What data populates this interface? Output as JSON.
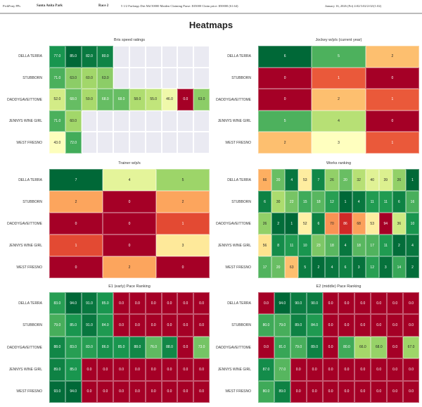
{
  "header": {
    "app": "PickPony PPs",
    "track": "Santa Anita Park",
    "race": "Race 2",
    "conditions": "5 1/2 Furlongs Dirt Md 50000 Maiden Claiming Purse: $35000 Claim price: $50000 (61.64)",
    "date": "January 16, 2026 (Fri) 4:02/3:02/2:02/(1:02)"
  },
  "page_title": "Heatmaps",
  "chart_data": [
    {
      "type": "heatmap",
      "title": "Bris speed ratings",
      "rows": [
        "DELLA TERRA",
        "STUBBORN",
        "DADDYGAVEITTOME",
        "JENNYS WINE GIRL",
        "WEST FRESNO"
      ],
      "colormap": "RdYlGn",
      "range": [
        0,
        85
      ],
      "values": [
        [
          77.0,
          85.0,
          82.0,
          80.0
        ],
        [
          71.0,
          63.0,
          60.0,
          63.0
        ],
        [
          52.0,
          68.0,
          59.0,
          68.0,
          68.0,
          58.0,
          55.0,
          46.0,
          0.0,
          63.0
        ],
        [
          71.0,
          60.0
        ],
        [
          43.0,
          72.0
        ]
      ],
      "columns": 10,
      "format": "float"
    },
    {
      "type": "heatmap",
      "title": "Jockey w/p/s (current year)",
      "rows": [
        "DELLA TERRA",
        "STUBBORN",
        "DADDYGAVEITTOME",
        "JENNYS WINE GIRL",
        "WEST FRESNO"
      ],
      "colormap": "RdYlGn",
      "range": [
        0,
        6
      ],
      "values": [
        [
          6,
          5,
          2
        ],
        [
          0,
          1,
          0
        ],
        [
          0,
          2,
          1
        ],
        [
          5,
          4,
          0
        ],
        [
          2,
          3,
          1
        ]
      ],
      "columns": 3,
      "format": "int"
    },
    {
      "type": "heatmap",
      "title": "Trainer w/p/s",
      "rows": [
        "DELLA TERRA",
        "STUBBORN",
        "DADDYGAVEITTOME",
        "JENNYS WINE GIRL",
        "WEST FRESNO"
      ],
      "colormap": "RdYlGn",
      "range": [
        0,
        7
      ],
      "values": [
        [
          7,
          4,
          5
        ],
        [
          2,
          0,
          2
        ],
        [
          0,
          0,
          1
        ],
        [
          1,
          0,
          3
        ],
        [
          0,
          2,
          0
        ]
      ],
      "columns": 3,
      "format": "int"
    },
    {
      "type": "heatmap",
      "title": "Works ranking",
      "rows": [
        "DELLA TERRA",
        "STUBBORN",
        "DADDYGAVEITTOME",
        "JENNYS WINE GIRL",
        "WEST FRESNO"
      ],
      "colormap": "RdYlGn_r",
      "range": [
        1,
        94
      ],
      "values": [
        [
          66,
          20,
          4,
          53,
          7,
          26,
          20,
          32,
          40,
          39,
          26,
          1
        ],
        [
          6,
          30,
          22,
          15,
          18,
          12,
          1,
          4,
          11,
          11,
          6,
          16
        ],
        [
          26,
          2,
          1,
          52,
          6,
          70,
          86,
          68,
          53,
          94,
          36,
          10
        ],
        [
          56,
          8,
          11,
          10,
          23,
          18,
          4,
          18,
          17,
          11,
          2,
          4
        ],
        [
          17,
          20,
          63,
          5,
          2,
          4,
          6,
          3,
          12,
          3,
          14,
          2
        ]
      ],
      "columns": 12,
      "format": "int"
    },
    {
      "type": "heatmap",
      "title": "E1 (early) Pace Ranking",
      "rows": [
        "DELLA TERRA",
        "STUBBORN",
        "DADDYGAVEITTOME",
        "JENNYS WINE GIRL",
        "WEST FRESNO"
      ],
      "colormap": "RdYlGn",
      "range": [
        0,
        94
      ],
      "values": [
        [
          83,
          94,
          91,
          85,
          0,
          0,
          0,
          0,
          0,
          0
        ],
        [
          79,
          85,
          91,
          84,
          0,
          0,
          0,
          0,
          0,
          0
        ],
        [
          88,
          83,
          83,
          86,
          85,
          88,
          76,
          88,
          0,
          73
        ],
        [
          89,
          85,
          0,
          0,
          0,
          0,
          0,
          0,
          0,
          0
        ],
        [
          93,
          94,
          0,
          0,
          0,
          0,
          0,
          0,
          0,
          0
        ]
      ],
      "columns": 10,
      "format": "float"
    },
    {
      "type": "heatmap",
      "title": "E2 (middle) Pace Ranking",
      "rows": [
        "DELLA TERRA",
        "STUBBORN",
        "DADDYGAVEITTOME",
        "JENNYS WINE GIRL",
        "WEST FRESNO"
      ],
      "colormap": "RdYlGn",
      "range": [
        0,
        94
      ],
      "values": [
        [
          0,
          94,
          90,
          90,
          0,
          0,
          0,
          0,
          0,
          0
        ],
        [
          80,
          79,
          89,
          84,
          0,
          0,
          0,
          0,
          0,
          0
        ],
        [
          0,
          81,
          79,
          89,
          0,
          80,
          66,
          68,
          0,
          67
        ],
        [
          87,
          77,
          0,
          0,
          0,
          0,
          0,
          0,
          0,
          0
        ],
        [
          80,
          89,
          0,
          0,
          0,
          0,
          0,
          0,
          0,
          0
        ]
      ],
      "columns": 10,
      "format": "float"
    }
  ]
}
